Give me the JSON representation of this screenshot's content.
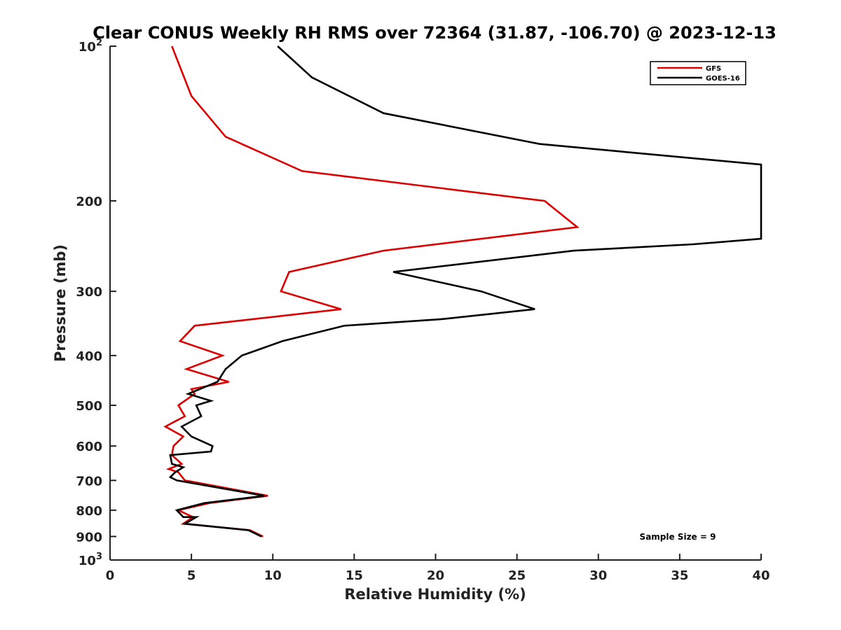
{
  "chart_data": {
    "type": "line",
    "title": "Clear CONUS Weekly RH RMS over 72364 (31.87, -106.70) @ 2023-12-13",
    "xlabel": "Relative Humidity (%)",
    "ylabel": "Pressure (mb)",
    "xlim": [
      0,
      40
    ],
    "ylim": [
      100,
      1000
    ],
    "y_scale": "log",
    "y_reversed": true,
    "x_ticks": [
      "0",
      "5",
      "10",
      "15",
      "20",
      "25",
      "30",
      "35",
      "40"
    ],
    "y_ticks": [
      {
        "value": 100,
        "base": "10",
        "exp": "2"
      },
      {
        "value": 200,
        "label": "200"
      },
      {
        "value": 300,
        "label": "300"
      },
      {
        "value": 400,
        "label": "400"
      },
      {
        "value": 500,
        "label": "500"
      },
      {
        "value": 600,
        "label": "600"
      },
      {
        "value": 700,
        "label": "700"
      },
      {
        "value": 800,
        "label": "800"
      },
      {
        "value": 900,
        "label": "900"
      },
      {
        "value": 1000,
        "base": "10",
        "exp": "3"
      }
    ],
    "legend_position": "top-right",
    "grid": false,
    "annotation": "Sample Size = 9",
    "series": [
      {
        "name": "GFS",
        "color": "#dd0000",
        "points": [
          [
            3.8,
            100
          ],
          [
            5.0,
            125
          ],
          [
            7.1,
            150
          ],
          [
            11.8,
            175
          ],
          [
            26.7,
            200
          ],
          [
            28.7,
            225
          ],
          [
            16.8,
            250
          ],
          [
            11.0,
            275
          ],
          [
            10.5,
            300
          ],
          [
            14.2,
            325
          ],
          [
            5.2,
            350
          ],
          [
            4.3,
            375
          ],
          [
            6.9,
            400
          ],
          [
            4.7,
            425
          ],
          [
            7.3,
            450
          ],
          [
            5.0,
            465
          ],
          [
            5.2,
            475
          ],
          [
            4.2,
            500
          ],
          [
            4.6,
            525
          ],
          [
            3.4,
            550
          ],
          [
            4.5,
            575
          ],
          [
            3.9,
            600
          ],
          [
            3.8,
            625
          ],
          [
            4.4,
            650
          ],
          [
            3.6,
            665
          ],
          [
            4.2,
            675
          ],
          [
            4.6,
            700
          ],
          [
            9.7,
            750
          ],
          [
            6.1,
            775
          ],
          [
            4.2,
            800
          ],
          [
            5.1,
            825
          ],
          [
            4.5,
            850
          ],
          [
            8.6,
            875
          ],
          [
            9.4,
            900
          ]
        ]
      },
      {
        "name": "GOES-16",
        "color": "#000000",
        "points": [
          [
            10.3,
            100
          ],
          [
            12.4,
            115
          ],
          [
            16.8,
            135
          ],
          [
            26.4,
            155
          ],
          [
            40.0,
            170
          ],
          [
            40.0,
            237
          ],
          [
            35.8,
            243
          ],
          [
            28.5,
            250
          ],
          [
            17.4,
            275
          ],
          [
            22.8,
            300
          ],
          [
            26.1,
            325
          ],
          [
            20.3,
            340
          ],
          [
            14.4,
            350
          ],
          [
            10.6,
            375
          ],
          [
            8.1,
            400
          ],
          [
            7.1,
            425
          ],
          [
            6.6,
            450
          ],
          [
            4.8,
            475
          ],
          [
            6.2,
            490
          ],
          [
            5.3,
            500
          ],
          [
            5.6,
            525
          ],
          [
            4.4,
            550
          ],
          [
            5.0,
            575
          ],
          [
            6.3,
            600
          ],
          [
            6.2,
            615
          ],
          [
            3.7,
            625
          ],
          [
            3.8,
            650
          ],
          [
            4.5,
            660
          ],
          [
            4.0,
            675
          ],
          [
            3.7,
            690
          ],
          [
            4.1,
            700
          ],
          [
            9.5,
            750
          ],
          [
            5.8,
            775
          ],
          [
            4.1,
            800
          ],
          [
            4.5,
            825
          ],
          [
            5.3,
            825
          ],
          [
            4.6,
            850
          ],
          [
            8.5,
            875
          ],
          [
            9.3,
            900
          ]
        ]
      }
    ]
  }
}
